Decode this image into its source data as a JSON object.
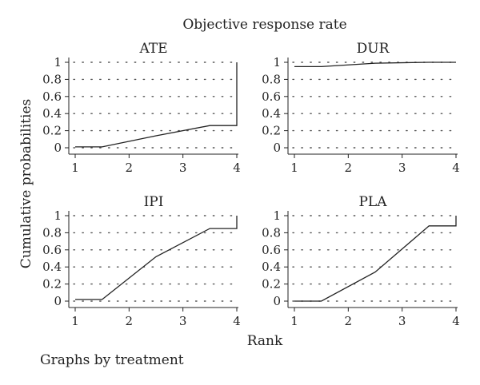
{
  "figure": {
    "title": "Objective response rate",
    "ylabel": "Cumulative probabilities",
    "xlabel": "Rank",
    "note": "Graphs by treatment"
  },
  "chart_data": {
    "type": "line",
    "title": "Objective response rate",
    "xlabel": "Rank",
    "ylabel": "Cumulative probabilities",
    "xlim": [
      1,
      4
    ],
    "ylim": [
      0,
      1
    ],
    "xticks": [
      1,
      2,
      3,
      4
    ],
    "yticks": [
      0,
      0.2,
      0.4,
      0.6,
      0.8,
      1
    ],
    "ytick_labels": [
      "0",
      "0.2",
      "0.4",
      "0.6",
      "0.8",
      "1"
    ],
    "grid": "dotted",
    "panels": [
      {
        "name": "ATE",
        "x": [
          1,
          1.5,
          2.5,
          3.5,
          4,
          4
        ],
        "y": [
          0.01,
          0.01,
          0.14,
          0.26,
          0.26,
          1.0
        ]
      },
      {
        "name": "DUR",
        "x": [
          1,
          1.5,
          2.5,
          3.5,
          4
        ],
        "y": [
          0.95,
          0.95,
          0.99,
          1.0,
          1.0
        ]
      },
      {
        "name": "IPI",
        "x": [
          1,
          1.5,
          2.5,
          3.5,
          4,
          4
        ],
        "y": [
          0.02,
          0.02,
          0.52,
          0.85,
          0.85,
          1.0
        ]
      },
      {
        "name": "PLA",
        "x": [
          1,
          1.5,
          2.5,
          3.5,
          4,
          4
        ],
        "y": [
          0.0,
          0.0,
          0.34,
          0.88,
          0.88,
          1.0
        ]
      }
    ],
    "line_color": "#222222"
  }
}
